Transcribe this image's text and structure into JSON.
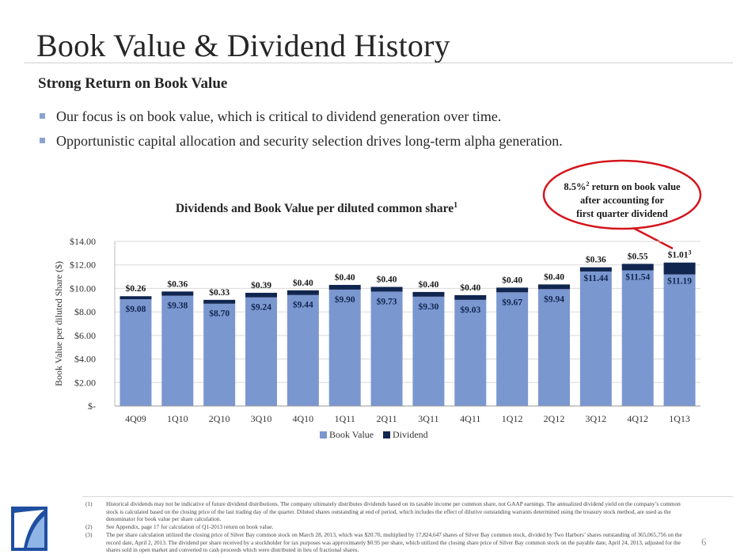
{
  "page": {
    "title": "Book Value & Dividend History",
    "page_number": "6"
  },
  "section": {
    "subtitle": "Strong Return on Book Value",
    "bullets": [
      "Our focus is on book value, which is critical to dividend generation over time.",
      "Opportunistic capital allocation and security selection drives long-term alpha generation."
    ]
  },
  "callout": {
    "line1_prefix": "8.5%",
    "line1_sup": "2",
    "line1_suffix": " return on book value",
    "line2": "after accounting for",
    "line3": "first quarter dividend"
  },
  "colors": {
    "book_value": "#7b97d0",
    "dividend": "#10264f",
    "callout_border": "#d4161d",
    "bullet": "#8aa4cc"
  },
  "chart_data": {
    "type": "bar",
    "stacked": true,
    "title": "Dividends and Book Value per diluted common share",
    "title_sup": "1",
    "ylabel": "Book Value per diluted Share ($)",
    "xlabel": "",
    "ylim": [
      0,
      14
    ],
    "yticks": [
      "$-",
      "$2.00",
      "$4.00",
      "$6.00",
      "$8.00",
      "$10.00",
      "$12.00",
      "$14.00"
    ],
    "categories": [
      "4Q09",
      "1Q10",
      "2Q10",
      "3Q10",
      "4Q10",
      "1Q11",
      "2Q11",
      "3Q11",
      "4Q11",
      "1Q12",
      "2Q12",
      "3Q12",
      "4Q12",
      "1Q13"
    ],
    "series": [
      {
        "name": "Book Value",
        "values": [
          9.08,
          9.38,
          8.7,
          9.24,
          9.44,
          9.9,
          9.73,
          9.3,
          9.03,
          9.67,
          9.94,
          11.44,
          11.54,
          11.19
        ],
        "labels": [
          "$9.08",
          "$9.38",
          "$8.70",
          "$9.24",
          "$9.44",
          "$9.90",
          "$9.73",
          "$9.30",
          "$9.03",
          "$9.67",
          "$9.94",
          "$11.44",
          "$11.54",
          "$11.19"
        ]
      },
      {
        "name": "Dividend",
        "values": [
          0.26,
          0.36,
          0.33,
          0.39,
          0.4,
          0.4,
          0.4,
          0.4,
          0.4,
          0.4,
          0.4,
          0.36,
          0.55,
          1.01
        ],
        "labels": [
          "$0.26",
          "$0.36",
          "$0.33",
          "$0.39",
          "$0.40",
          "$0.40",
          "$0.40",
          "$0.40",
          "$0.40",
          "$0.40",
          "$0.40",
          "$0.36",
          "$0.55",
          "$1.01"
        ]
      }
    ],
    "last_dividend_sup": "3",
    "legend": [
      "Book Value",
      "Dividend"
    ],
    "legend_position": "bottom",
    "grid": true
  },
  "footnotes": [
    {
      "num": "(1)",
      "text": "Historical dividends may not be indicative of future dividend distributions.  The company ultimately distributes dividends based on its taxable income per common share, not GAAP earnings. The annualized dividend yield on the company’s common stock is calculated based on the closing price of the last trading day of the quarter.  Diluted shares outstanding at end of period, which includes the effect of dilutive outstanding warrants determined using the treasury stock method, are used as the denominator for book value per share calculation."
    },
    {
      "num": "(2)",
      "text": "See Appendix, page 17 for calculation of Q1-2013 return on book value."
    },
    {
      "num": "(3)",
      "text": "The per share calculation utilized the closing price of Silver Bay common stock on March 28, 2013, which was $20.70, multiplied by 17,824,647 shares of Silver Bay common stock, divided by Two Harbors’ shares outstanding of 365,065,756 on the record date, April 2, 2013.  The dividend per share received by a stockholder for tax purposes was approximately $0.95 per share, which utilized the closing share price of Silver Bay common stock on the payable date, April 24, 2013, adjusted for the shares sold in open market and converted to cash proceeds which were distributed in lieu of fractional shares."
    }
  ]
}
